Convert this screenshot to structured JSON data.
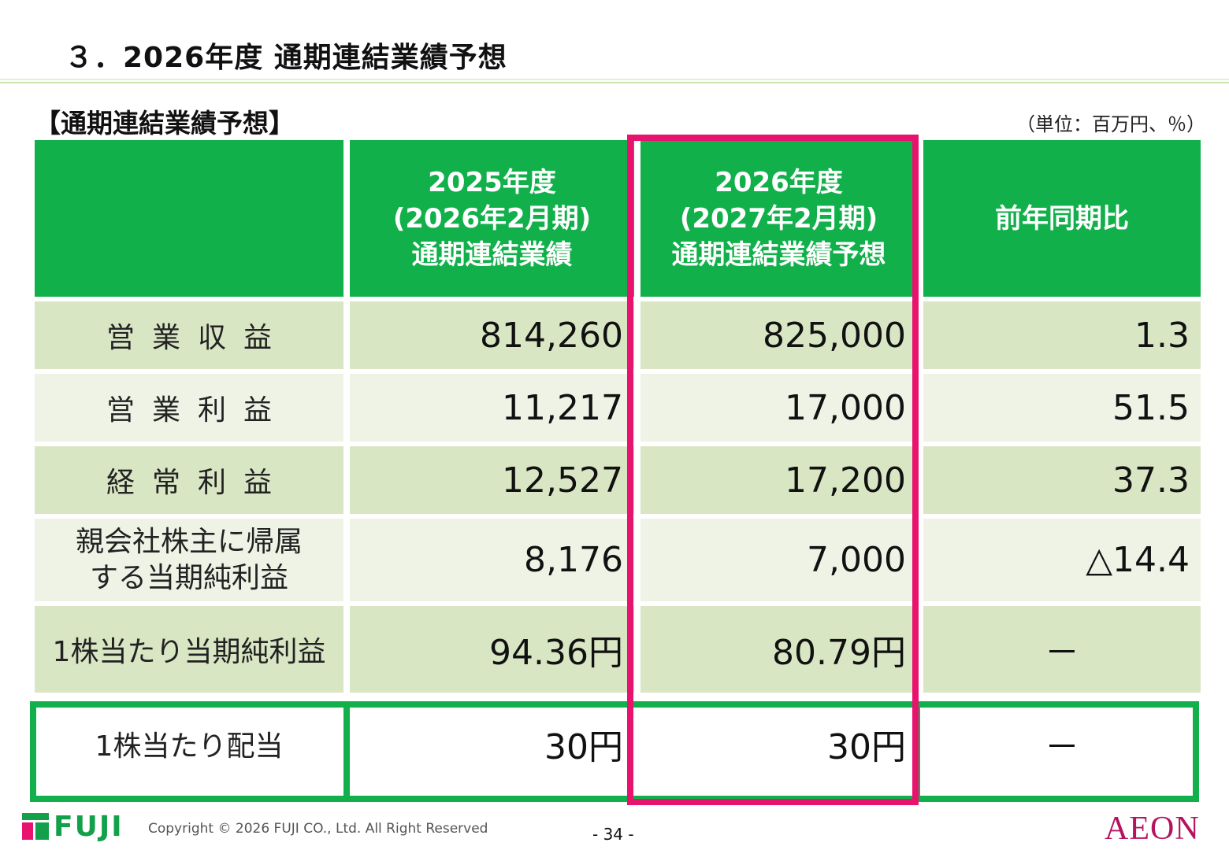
{
  "page_title": "３．2026年度 通期連結業績予想",
  "section_title": "【通期連結業績予想】",
  "unit_label": "（単位：百万円、％）",
  "table": {
    "headers": [
      {
        "lines": []
      },
      {
        "lines": [
          "2025年度",
          "(2026年2月期)",
          "通期連結業績"
        ]
      },
      {
        "lines": [
          "2026年度",
          "(2027年2月期)",
          "通期連結業績予想"
        ]
      },
      {
        "lines": [
          "前年同期比"
        ]
      }
    ],
    "rows": [
      {
        "label": "営業収益",
        "fy2025": "814,260",
        "fy2026": "825,000",
        "yoy": "1.3"
      },
      {
        "label": "営業利益",
        "fy2025": "11,217",
        "fy2026": "17,000",
        "yoy": "51.5"
      },
      {
        "label": "経常利益",
        "fy2025": "12,527",
        "fy2026": "17,200",
        "yoy": "37.3"
      },
      {
        "label_lines": [
          "親会社株主に帰属",
          "する当期純利益"
        ],
        "fy2025": "8,176",
        "fy2026": "7,000",
        "yoy": "△14.4"
      },
      {
        "label": "1株当たり当期純利益",
        "fy2025": "94.36円",
        "fy2026": "80.79円",
        "yoy": "－"
      },
      {
        "label": "1株当たり配当",
        "fy2025": "30円",
        "fy2026": "30円",
        "yoy": "－"
      }
    ]
  },
  "footer": {
    "company_logo_text": "FUJI",
    "copyright": "Copyright © 2026 FUJI CO., Ltd. All Right Reserved",
    "page_number": "- 34 -",
    "partner_logo_text": "AEON"
  },
  "colors": {
    "header_green": "#12b04b",
    "row_dark": "#d9e6c4",
    "row_light": "#eef3e6",
    "highlight_pink": "#e8136e",
    "dividend_outline_green": "#12b04b"
  }
}
